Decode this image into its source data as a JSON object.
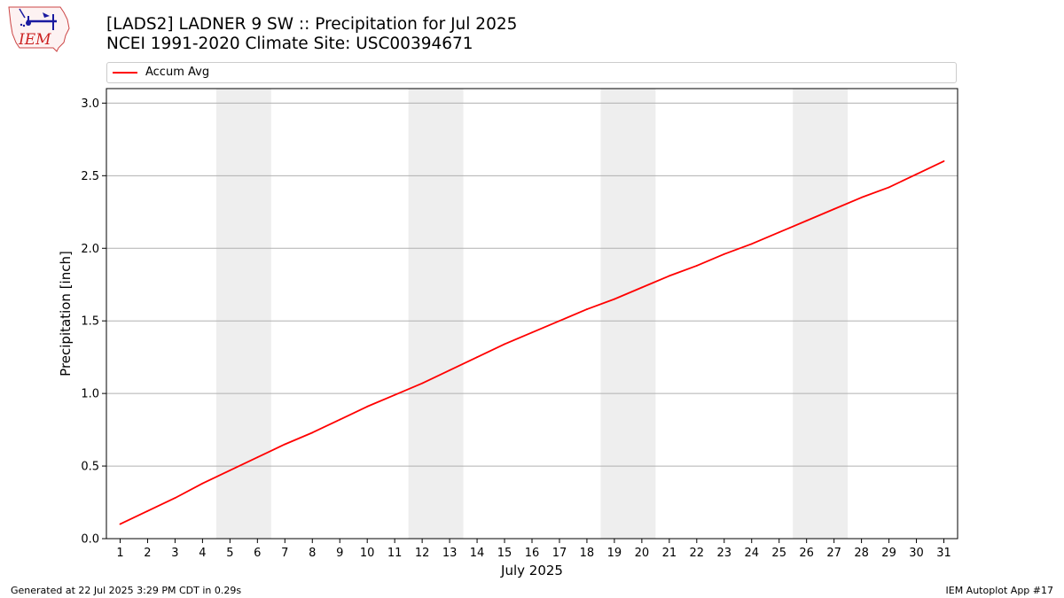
{
  "header": {
    "title_line1": "[LADS2] LADNER 9 SW :: Precipitation for Jul 2025",
    "title_line2": "NCEI 1991-2020 Climate Site: USC00394671"
  },
  "logo": {
    "text": "IEM",
    "icon": "iem-logo-icon"
  },
  "footer": {
    "left": "Generated at 22 Jul 2025 3:29 PM CDT in 0.29s",
    "right": "IEM Autoplot App #17"
  },
  "chart_data": {
    "type": "line",
    "xlabel": "July 2025",
    "ylabel": "Precipitation [inch]",
    "xlim": [
      0.5,
      31.5
    ],
    "ylim": [
      0,
      3.1
    ],
    "yticks": [
      0.0,
      0.5,
      1.0,
      1.5,
      2.0,
      2.5,
      3.0
    ],
    "ytick_labels": [
      "0.0",
      "0.5",
      "1.0",
      "1.5",
      "2.0",
      "2.5",
      "3.0"
    ],
    "xticks": [
      1,
      2,
      3,
      4,
      5,
      6,
      7,
      8,
      9,
      10,
      11,
      12,
      13,
      14,
      15,
      16,
      17,
      18,
      19,
      20,
      21,
      22,
      23,
      24,
      25,
      26,
      27,
      28,
      29,
      30,
      31
    ],
    "grid": "horizontal",
    "legend_placement": "top",
    "weekend_bands": [
      [
        4.5,
        6.5
      ],
      [
        11.5,
        13.5
      ],
      [
        18.5,
        20.5
      ],
      [
        25.5,
        27.5
      ]
    ],
    "band_color": "#eeeeee",
    "series": [
      {
        "name": "Accum Avg",
        "color": "#ff0000",
        "x": [
          1,
          2,
          3,
          4,
          5,
          6,
          7,
          8,
          9,
          10,
          11,
          12,
          13,
          14,
          15,
          16,
          17,
          18,
          19,
          20,
          21,
          22,
          23,
          24,
          25,
          26,
          27,
          28,
          29,
          30,
          31
        ],
        "values": [
          0.1,
          0.19,
          0.28,
          0.38,
          0.47,
          0.56,
          0.65,
          0.73,
          0.82,
          0.91,
          0.99,
          1.07,
          1.16,
          1.25,
          1.34,
          1.42,
          1.5,
          1.58,
          1.65,
          1.73,
          1.81,
          1.88,
          1.96,
          2.03,
          2.11,
          2.19,
          2.27,
          2.35,
          2.42,
          2.51,
          2.6
        ]
      }
    ]
  }
}
